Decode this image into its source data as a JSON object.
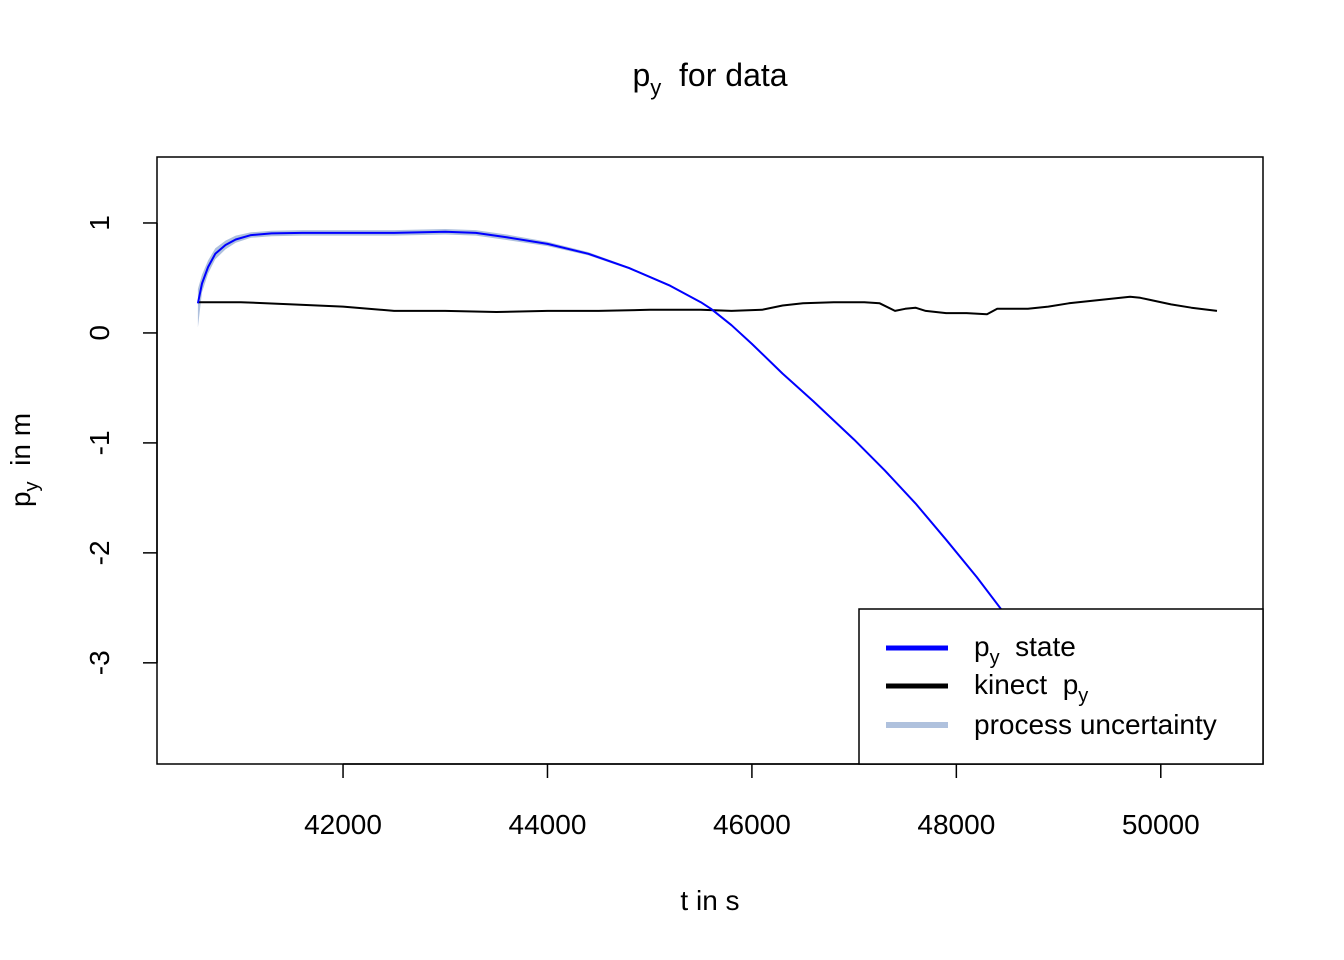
{
  "chart_data": {
    "type": "line",
    "title": {
      "main": "p",
      "sub": "y",
      "rest": "  for data"
    },
    "xlabel": "t in s",
    "ylabel": {
      "main": "p",
      "sub": "y",
      "rest": "  in m"
    },
    "xlim": [
      40180,
      51000
    ],
    "ylim": [
      -3.92,
      1.6
    ],
    "x_ticks": [
      42000,
      44000,
      46000,
      48000,
      50000
    ],
    "x_tick_labels": [
      "42000",
      "44000",
      "46000",
      "48000",
      "50000"
    ],
    "y_ticks": [
      -3,
      -2,
      -1,
      0,
      1
    ],
    "y_tick_labels": [
      "-3",
      "-2",
      "-1",
      "0",
      "1"
    ],
    "grid": false,
    "legend_position": "bottom-right",
    "legend": [
      {
        "main": "p",
        "sub": "y",
        "rest": "  state",
        "color": "#0000ff"
      },
      {
        "main": "kinect  p",
        "sub": "y",
        "rest": "",
        "color": "#000000"
      },
      {
        "main": "process uncertainty",
        "sub": "",
        "rest": "",
        "color": "#afc1dd"
      }
    ],
    "series": [
      {
        "color": "#0000ff",
        "x": [
          40580,
          40620,
          40680,
          40750,
          40850,
          40950,
          41100,
          41300,
          41600,
          42000,
          42500,
          43000,
          43300,
          43600,
          44000,
          44400,
          44800,
          45200,
          45500,
          45600,
          45800,
          46000,
          46300,
          46600,
          47000,
          47300,
          47600,
          47900,
          48200,
          48550
        ],
        "y": [
          0.27,
          0.45,
          0.6,
          0.72,
          0.8,
          0.85,
          0.89,
          0.905,
          0.91,
          0.91,
          0.91,
          0.92,
          0.91,
          0.87,
          0.81,
          0.72,
          0.59,
          0.43,
          0.28,
          0.22,
          0.07,
          -0.1,
          -0.37,
          -0.62,
          -0.97,
          -1.25,
          -1.55,
          -1.88,
          -2.22,
          -2.65
        ]
      },
      {
        "color": "#000000",
        "x": [
          40580,
          41000,
          41500,
          42000,
          42500,
          43000,
          43500,
          44000,
          44500,
          45000,
          45500,
          45800,
          46100,
          46300,
          46500,
          46800,
          47100,
          47250,
          47400,
          47500,
          47600,
          47700,
          47900,
          48100,
          48300,
          48400,
          48700,
          48900,
          49100,
          49400,
          49700,
          49800,
          49900,
          50100,
          50300,
          50550
        ],
        "y": [
          0.28,
          0.28,
          0.26,
          0.24,
          0.2,
          0.2,
          0.19,
          0.2,
          0.2,
          0.21,
          0.21,
          0.2,
          0.21,
          0.25,
          0.27,
          0.28,
          0.28,
          0.27,
          0.2,
          0.22,
          0.23,
          0.2,
          0.18,
          0.18,
          0.17,
          0.22,
          0.22,
          0.24,
          0.27,
          0.3,
          0.33,
          0.32,
          0.3,
          0.26,
          0.23,
          0.2
        ]
      }
    ],
    "uncertainty_band": {
      "color": "#afc1dd",
      "x": [
        40580,
        40620,
        40680,
        40750,
        40850,
        40950,
        41100,
        41300,
        41600,
        42000,
        42500,
        43000,
        43300,
        43600,
        44000,
        44400,
        44800,
        45200,
        45500,
        45600
      ],
      "lower": [
        0.05,
        0.37,
        0.54,
        0.67,
        0.76,
        0.82,
        0.865,
        0.88,
        0.885,
        0.885,
        0.885,
        0.895,
        0.885,
        0.845,
        0.79,
        0.705,
        0.58,
        0.42,
        0.275,
        0.215
      ],
      "upper": [
        0.4,
        0.53,
        0.66,
        0.77,
        0.84,
        0.885,
        0.915,
        0.93,
        0.935,
        0.935,
        0.935,
        0.945,
        0.935,
        0.895,
        0.83,
        0.735,
        0.6,
        0.44,
        0.285,
        0.225
      ]
    }
  }
}
